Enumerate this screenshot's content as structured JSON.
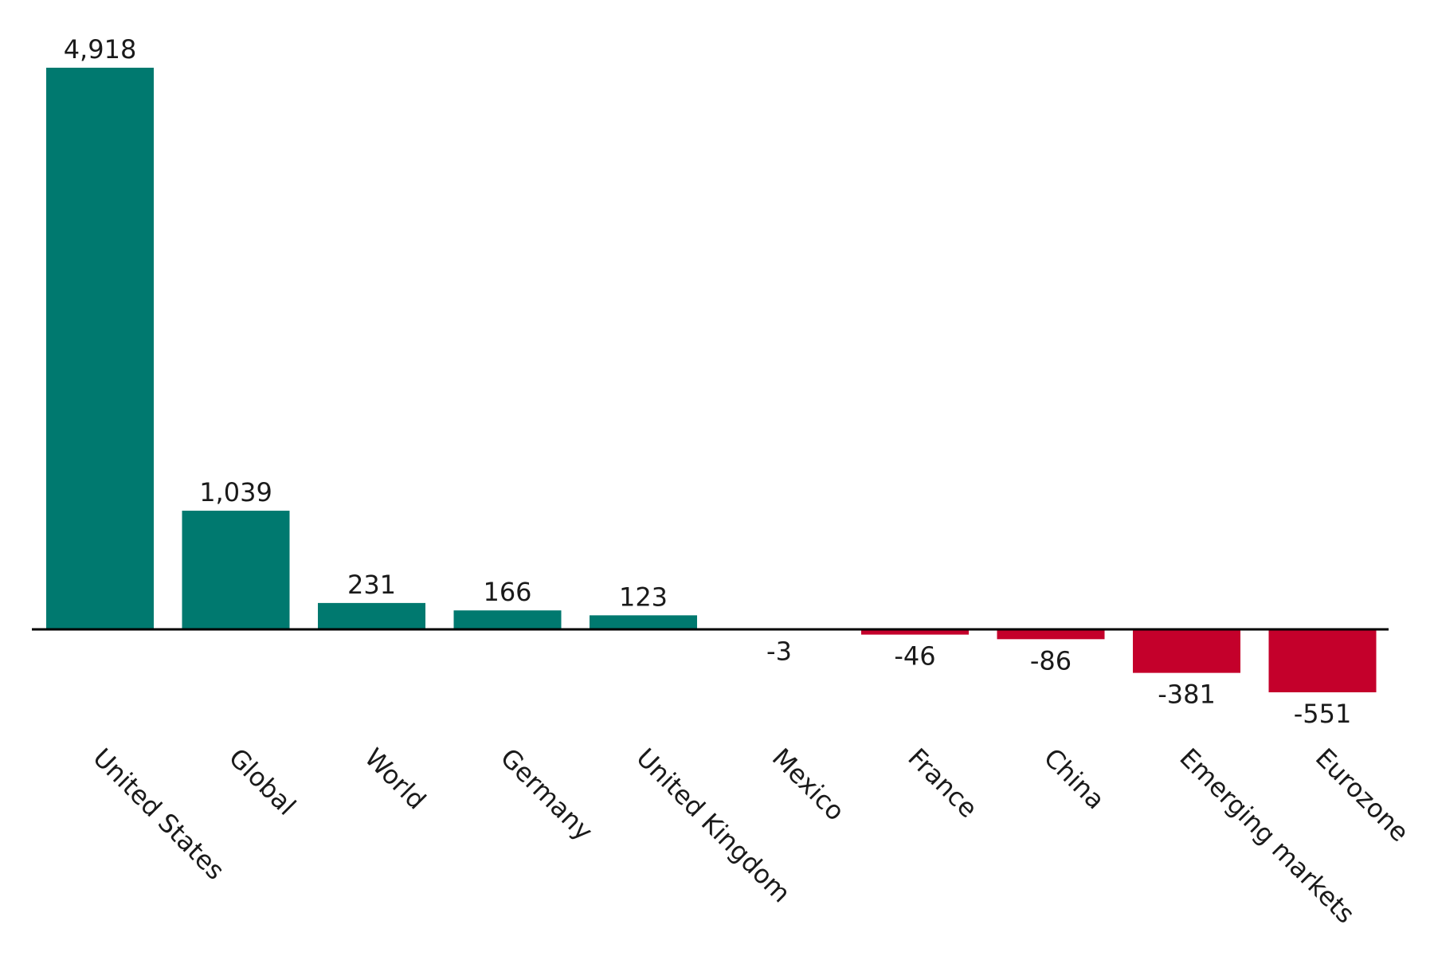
{
  "chart_data": {
    "type": "bar",
    "title": "",
    "xlabel": "",
    "ylabel": "",
    "categories": [
      "United States",
      "Global",
      "World",
      "Germany",
      "United Kingdom",
      "Mexico",
      "France",
      "China",
      "Emerging markets",
      "Eurozone"
    ],
    "values": [
      4918,
      1039,
      231,
      166,
      123,
      -3,
      -46,
      -86,
      -381,
      -551
    ],
    "value_labels": [
      "4,918",
      "1,039",
      "231",
      "166",
      "123",
      "-3",
      "-46",
      "-86",
      "-381",
      "-551"
    ],
    "ylim": [
      -551,
      4918
    ],
    "grid": false,
    "legend": "none",
    "colors": {
      "positive": "#00796f",
      "negative": "#c4002b",
      "axis": "#000000"
    }
  }
}
